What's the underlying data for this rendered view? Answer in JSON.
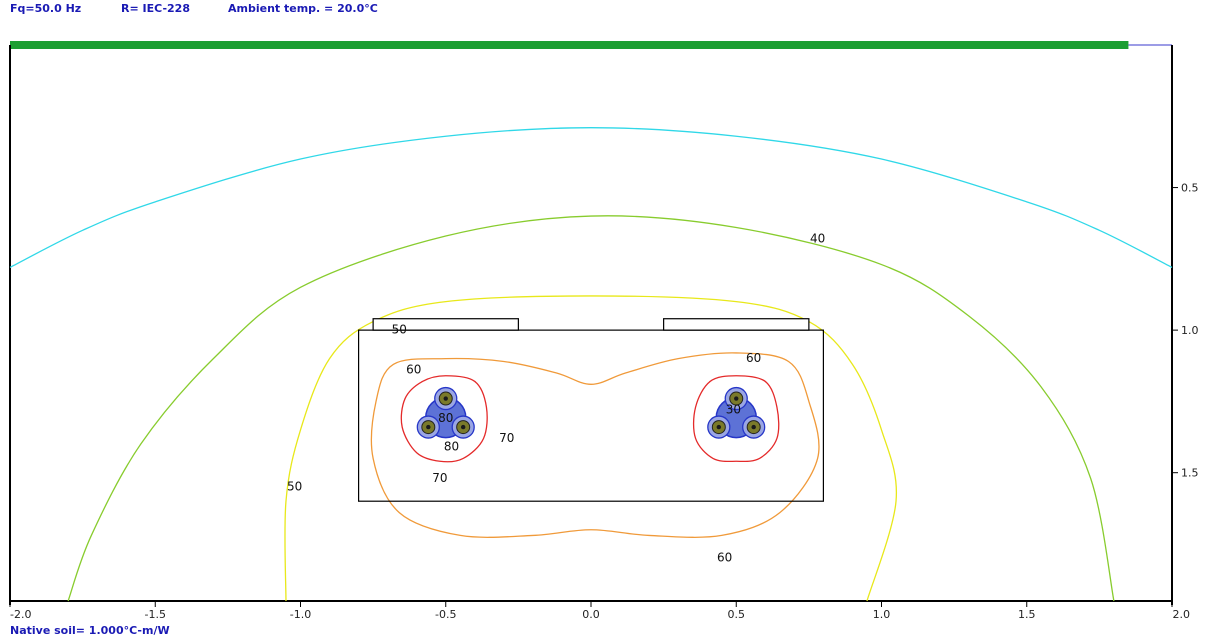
{
  "header": {
    "frequency": "Fq=50.0 Hz",
    "resistance": "R= IEC-228",
    "ambient": "Ambient temp. = 20.0°C"
  },
  "footer": {
    "soil": "Native soil= 1.000°C-m/W"
  },
  "colors": {
    "ground": "#1c9e32",
    "box": "#000000",
    "c30": "#30d8e8",
    "c40": "#88cc2e",
    "c50": "#e8e81a",
    "c60": "#f09a3a",
    "c70": "#e42a2a",
    "c80": "#2636c8",
    "conductor": "#7a7a2a"
  },
  "chart_data": {
    "type": "contour",
    "x_axis": {
      "min": -2.0,
      "max": 2.0,
      "ticks": [
        "-2.0",
        "-1.5",
        "-1.0",
        "-0.5",
        "0.0",
        "0.5",
        "1.0",
        "1.5",
        "2.0"
      ]
    },
    "y_axis": {
      "min": 0.0,
      "max": 1.95,
      "inverted": true,
      "position": "right",
      "ticks": [
        "0.5",
        "1.0",
        "1.5"
      ]
    },
    "duct_bank": {
      "x": [
        -0.8,
        0.8
      ],
      "y": [
        1.0,
        1.6
      ]
    },
    "covers": [
      {
        "x": [
          -0.75,
          -0.25
        ],
        "y": [
          0.96,
          1.0
        ]
      },
      {
        "x": [
          0.25,
          0.75
        ],
        "y": [
          0.96,
          1.0
        ]
      }
    ],
    "cables": [
      {
        "name": "left",
        "conductors": [
          [
            -0.5,
            1.24
          ],
          [
            -0.56,
            1.34
          ],
          [
            -0.44,
            1.34
          ]
        ]
      },
      {
        "name": "right",
        "conductors": [
          [
            0.5,
            1.24
          ],
          [
            0.44,
            1.34
          ],
          [
            0.56,
            1.34
          ]
        ]
      }
    ],
    "labels": [
      {
        "text": "40",
        "x": 0.78,
        "y": 0.68
      },
      {
        "text": "50",
        "x": -0.66,
        "y": 1.0
      },
      {
        "text": "50",
        "x": -1.02,
        "y": 1.55
      },
      {
        "text": "60",
        "x": -0.61,
        "y": 1.14
      },
      {
        "text": "60",
        "x": 0.56,
        "y": 1.1
      },
      {
        "text": "60",
        "x": 0.46,
        "y": 1.8
      },
      {
        "text": "70",
        "x": -0.29,
        "y": 1.38
      },
      {
        "text": "70",
        "x": -0.52,
        "y": 1.52
      },
      {
        "text": "80",
        "x": -0.5,
        "y": 1.31
      },
      {
        "text": "80",
        "x": -0.48,
        "y": 1.41
      },
      {
        "text": "30",
        "x": 0.49,
        "y": 1.28
      }
    ],
    "isotherms": [
      {
        "name": "30",
        "color_key": "c30",
        "points": [
          [
            -2.0,
            0.78
          ],
          [
            -1.75,
            0.65
          ],
          [
            -1.5,
            0.55
          ],
          [
            -1.0,
            0.4
          ],
          [
            -0.5,
            0.32
          ],
          [
            0.0,
            0.29
          ],
          [
            0.5,
            0.32
          ],
          [
            1.0,
            0.4
          ],
          [
            1.5,
            0.55
          ],
          [
            1.75,
            0.65
          ],
          [
            2.0,
            0.78
          ]
        ]
      },
      {
        "name": "40",
        "color_key": "c40",
        "points": [
          [
            -1.8,
            1.95
          ],
          [
            -1.72,
            1.72
          ],
          [
            -1.55,
            1.4
          ],
          [
            -1.3,
            1.1
          ],
          [
            -1.0,
            0.85
          ],
          [
            -0.5,
            0.67
          ],
          [
            0.0,
            0.6
          ],
          [
            0.5,
            0.64
          ],
          [
            1.0,
            0.77
          ],
          [
            1.3,
            0.95
          ],
          [
            1.55,
            1.2
          ],
          [
            1.72,
            1.52
          ],
          [
            1.8,
            1.95
          ]
        ]
      },
      {
        "name": "50",
        "color_key": "c50",
        "points": [
          [
            -1.05,
            1.95
          ],
          [
            -1.05,
            1.6
          ],
          [
            -1.0,
            1.35
          ],
          [
            -0.9,
            1.1
          ],
          [
            -0.75,
            0.97
          ],
          [
            -0.5,
            0.9
          ],
          [
            0.0,
            0.88
          ],
          [
            0.5,
            0.9
          ],
          [
            0.75,
            0.97
          ],
          [
            0.9,
            1.12
          ],
          [
            1.0,
            1.35
          ],
          [
            1.05,
            1.6
          ],
          [
            0.95,
            1.95
          ]
        ]
      },
      {
        "name": "60",
        "color_key": "c60",
        "closed": true,
        "points": [
          [
            -0.5,
            1.1
          ],
          [
            -0.3,
            1.11
          ],
          [
            -0.12,
            1.15
          ],
          [
            0.0,
            1.19
          ],
          [
            0.12,
            1.15
          ],
          [
            0.3,
            1.1
          ],
          [
            0.5,
            1.08
          ],
          [
            0.68,
            1.11
          ],
          [
            0.75,
            1.25
          ],
          [
            0.78,
            1.45
          ],
          [
            0.65,
            1.64
          ],
          [
            0.45,
            1.72
          ],
          [
            0.2,
            1.72
          ],
          [
            0.0,
            1.7
          ],
          [
            -0.2,
            1.72
          ],
          [
            -0.45,
            1.72
          ],
          [
            -0.66,
            1.64
          ],
          [
            -0.75,
            1.45
          ],
          [
            -0.74,
            1.25
          ],
          [
            -0.68,
            1.12
          ]
        ]
      },
      {
        "name": "70-left",
        "color_key": "c70",
        "closed": true,
        "points": [
          [
            -0.5,
            1.16
          ],
          [
            -0.4,
            1.18
          ],
          [
            -0.36,
            1.27
          ],
          [
            -0.37,
            1.38
          ],
          [
            -0.44,
            1.45
          ],
          [
            -0.52,
            1.46
          ],
          [
            -0.6,
            1.43
          ],
          [
            -0.65,
            1.34
          ],
          [
            -0.64,
            1.24
          ],
          [
            -0.58,
            1.18
          ]
        ]
      },
      {
        "name": "70-right",
        "color_key": "c70",
        "closed": true,
        "points": [
          [
            0.5,
            1.16
          ],
          [
            0.6,
            1.18
          ],
          [
            0.64,
            1.27
          ],
          [
            0.64,
            1.38
          ],
          [
            0.58,
            1.45
          ],
          [
            0.5,
            1.46
          ],
          [
            0.42,
            1.45
          ],
          [
            0.36,
            1.38
          ],
          [
            0.36,
            1.27
          ],
          [
            0.41,
            1.18
          ]
        ]
      }
    ]
  }
}
